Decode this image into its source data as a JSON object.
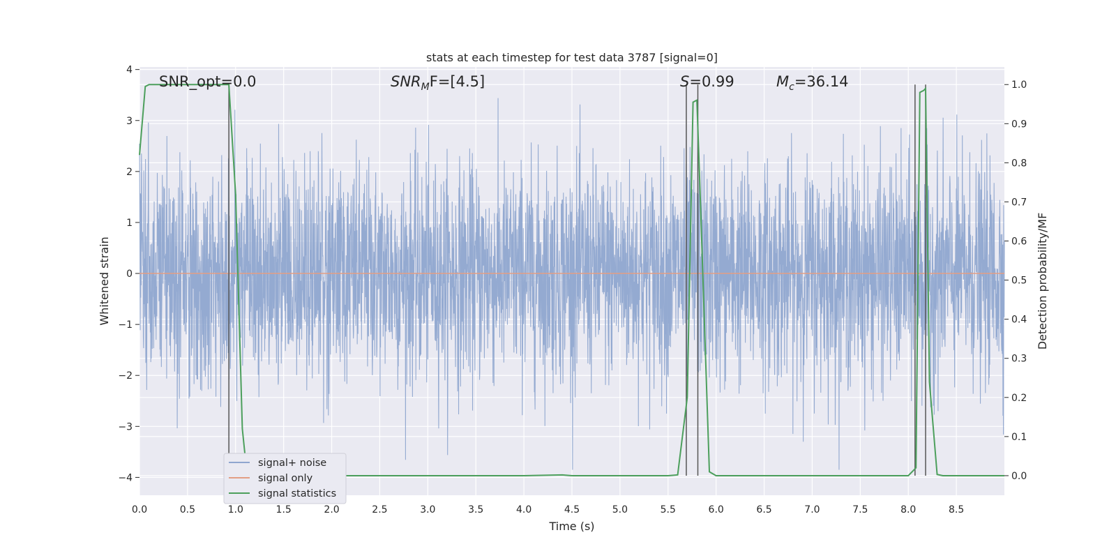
{
  "chart_data": {
    "type": "line",
    "title": "stats at each timestep for test data 3787 [signal=0]",
    "xlabel": "Time (s)",
    "ylabel": "Whitened strain",
    "y2label": "Detection probability/MF",
    "xlim": [
      0.0,
      9.0
    ],
    "ylim": [
      -4.35,
      4.05
    ],
    "y2lim": [
      -0.05,
      1.045
    ],
    "xticks": [
      "0.0",
      "0.5",
      "1.0",
      "1.5",
      "2.0",
      "2.5",
      "3.0",
      "3.5",
      "4.0",
      "4.5",
      "5.0",
      "5.5",
      "6.0",
      "6.5",
      "7.0",
      "7.5",
      "8.0",
      "8.5"
    ],
    "yticks": [
      "4",
      "3",
      "2",
      "1",
      "0",
      "−1",
      "−2",
      "−3",
      "−4"
    ],
    "y2ticks": [
      "1.0",
      "0.9",
      "0.8",
      "0.7",
      "0.6",
      "0.5",
      "0.4",
      "0.3",
      "0.2",
      "0.1",
      "0.0"
    ],
    "grid": true,
    "legend_position": "lower-left",
    "annotations": {
      "snr_opt": "SNR_opt=0.0",
      "snr_mf_sym": "SNR",
      "snr_mf_sub": "M",
      "snr_mf_rest": "F=[4.5]",
      "s_sym": "S",
      "s_rest": "=0.99",
      "mc_sym": "M",
      "mc_sub": "c",
      "mc_rest": "=36.14"
    },
    "series": [
      {
        "name": "signal+ noise",
        "color": "#8fa6cf",
        "description_values": "whitened strain noise, amplitude roughly within ±2 with spikes to about ±3.7"
      },
      {
        "name": "signal only",
        "color": "#e39e84",
        "x": [
          0.0,
          9.0
        ],
        "y": [
          0.0,
          0.0
        ]
      },
      {
        "name": "signal statistics",
        "color": "#4c9f5c",
        "x": [
          0.0,
          0.06,
          0.1,
          0.2,
          0.4,
          0.6,
          0.8,
          0.93,
          1.0,
          1.07,
          1.12,
          1.2,
          2.0,
          3.0,
          4.0,
          4.4,
          4.5,
          5.0,
          5.5,
          5.6,
          5.7,
          5.76,
          5.8,
          5.83,
          5.93,
          6.0,
          7.0,
          8.0,
          8.08,
          8.12,
          8.16,
          8.18,
          8.22,
          8.3,
          8.36,
          9.0
        ],
        "y": [
          0.82,
          0.995,
          1.0,
          1.0,
          1.0,
          1.0,
          1.0,
          1.0,
          0.72,
          0.12,
          0.0,
          0.0,
          0.0,
          0.0,
          0.0,
          0.002,
          0.0,
          0.0,
          0.0,
          0.002,
          0.2,
          0.955,
          0.96,
          0.75,
          0.01,
          0.0,
          0.0,
          0.0,
          0.02,
          0.98,
          0.985,
          0.99,
          0.24,
          0.003,
          0.0,
          0.0
        ]
      }
    ],
    "vlines_x": [
      0.93,
      5.69,
      5.81,
      8.07,
      8.18
    ]
  }
}
